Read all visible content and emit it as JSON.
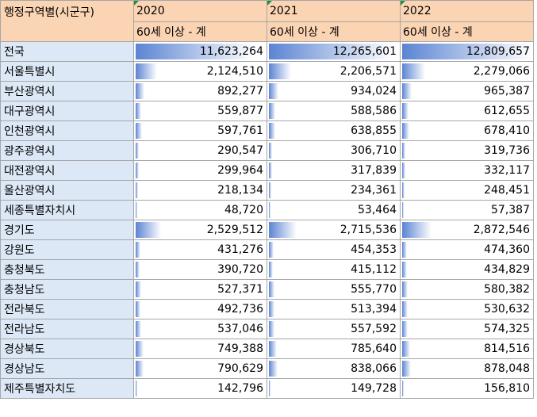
{
  "header": {
    "region_col": "행정구역별(시군구)",
    "years": [
      "2020",
      "2021",
      "2022"
    ],
    "subheader": "60세 이상 - 계"
  },
  "rows": [
    {
      "region": "전국",
      "values": [
        "11,623,264",
        "12,265,601",
        "12,809,657"
      ],
      "num": [
        11623264,
        12265601,
        12809657
      ]
    },
    {
      "region": "서울특별시",
      "values": [
        "2,124,510",
        "2,206,571",
        "2,279,066"
      ],
      "num": [
        2124510,
        2206571,
        2279066
      ]
    },
    {
      "region": "부산광역시",
      "values": [
        "892,277",
        "934,024",
        "965,387"
      ],
      "num": [
        892277,
        934024,
        965387
      ]
    },
    {
      "region": "대구광역시",
      "values": [
        "559,877",
        "588,586",
        "612,655"
      ],
      "num": [
        559877,
        588586,
        612655
      ]
    },
    {
      "region": "인천광역시",
      "values": [
        "597,761",
        "638,855",
        "678,410"
      ],
      "num": [
        597761,
        638855,
        678410
      ]
    },
    {
      "region": "광주광역시",
      "values": [
        "290,547",
        "306,710",
        "319,736"
      ],
      "num": [
        290547,
        306710,
        319736
      ]
    },
    {
      "region": "대전광역시",
      "values": [
        "299,964",
        "317,839",
        "332,117"
      ],
      "num": [
        299964,
        317839,
        332117
      ]
    },
    {
      "region": "울산광역시",
      "values": [
        "218,134",
        "234,361",
        "248,451"
      ],
      "num": [
        218134,
        234361,
        248451
      ]
    },
    {
      "region": "세종특별자치시",
      "values": [
        "48,720",
        "53,464",
        "57,387"
      ],
      "num": [
        48720,
        53464,
        57387
      ]
    },
    {
      "region": "경기도",
      "values": [
        "2,529,512",
        "2,715,536",
        "2,872,546"
      ],
      "num": [
        2529512,
        2715536,
        2872546
      ]
    },
    {
      "region": "강원도",
      "values": [
        "431,276",
        "454,353",
        "474,360"
      ],
      "num": [
        431276,
        454353,
        474360
      ]
    },
    {
      "region": "충청북도",
      "values": [
        "390,720",
        "415,112",
        "434,829"
      ],
      "num": [
        390720,
        415112,
        434829
      ]
    },
    {
      "region": "충청남도",
      "values": [
        "527,371",
        "555,770",
        "580,382"
      ],
      "num": [
        527371,
        555770,
        580382
      ]
    },
    {
      "region": "전라북도",
      "values": [
        "492,736",
        "513,394",
        "530,632"
      ],
      "num": [
        492736,
        513394,
        530632
      ]
    },
    {
      "region": "전라남도",
      "values": [
        "537,046",
        "557,592",
        "574,325"
      ],
      "num": [
        537046,
        557592,
        574325
      ]
    },
    {
      "region": "경상북도",
      "values": [
        "749,388",
        "785,640",
        "814,516"
      ],
      "num": [
        749388,
        785640,
        814516
      ]
    },
    {
      "region": "경상남도",
      "values": [
        "790,629",
        "838,066",
        "878,048"
      ],
      "num": [
        790629,
        838066,
        878048
      ]
    },
    {
      "region": "제주특별자치도",
      "values": [
        "142,796",
        "149,728",
        "156,810"
      ],
      "num": [
        142796,
        149728,
        156810
      ]
    }
  ],
  "colors": {
    "header_bg": "#fbd4b4",
    "label_bg": "#dde8f6",
    "databar": "#5b84d3"
  }
}
